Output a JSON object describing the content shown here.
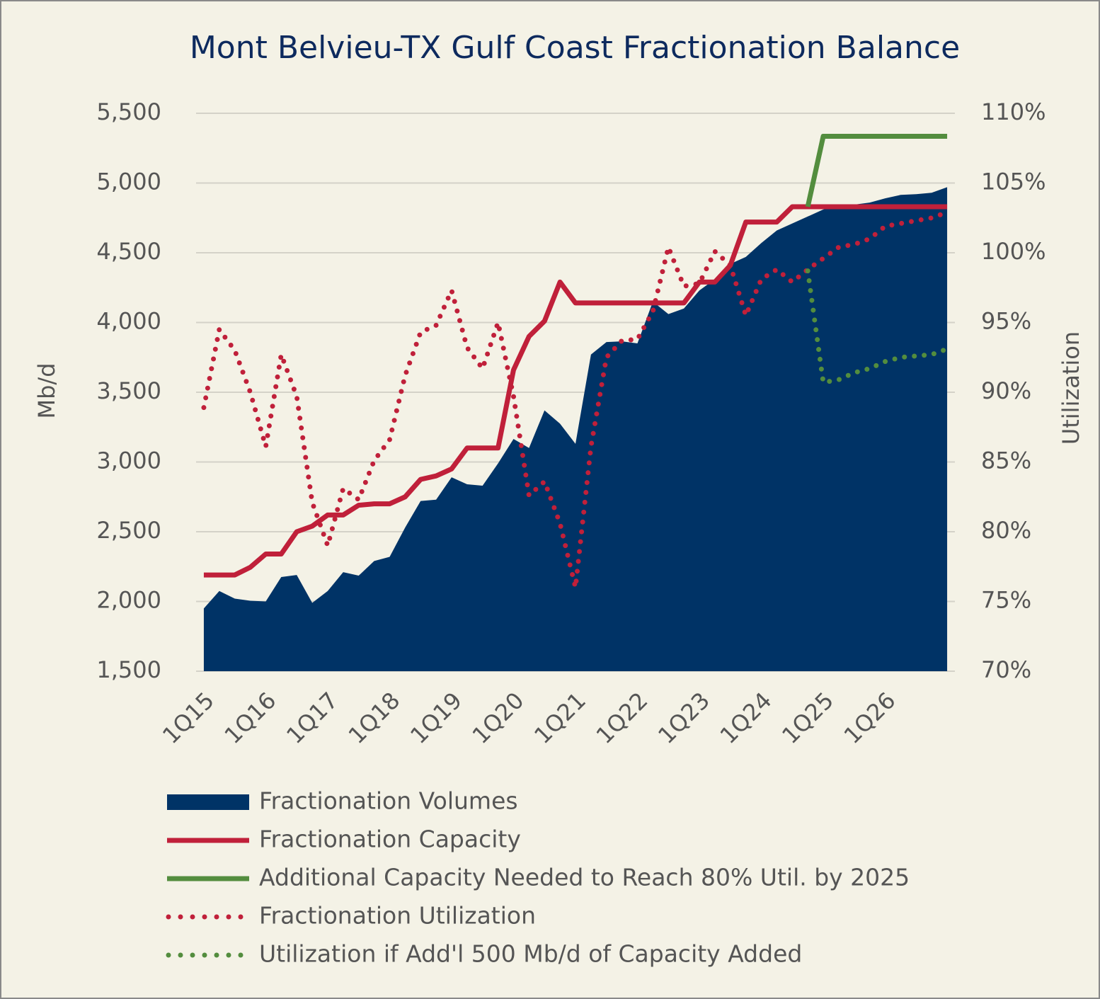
{
  "chart_data": {
    "type": "line",
    "title": "Mont Belvieu-TX Gulf Coast Fractionation Balance",
    "y_label": "Mb/d",
    "y2_label": "Utilization",
    "categories": [
      "1Q15",
      null,
      null,
      null,
      "1Q16",
      null,
      null,
      null,
      "1Q17",
      null,
      null,
      null,
      "1Q18",
      null,
      null,
      null,
      "1Q19",
      null,
      null,
      null,
      "1Q20",
      null,
      null,
      null,
      "1Q21",
      null,
      null,
      null,
      "1Q22",
      null,
      null,
      null,
      "1Q23",
      null,
      null,
      null,
      "1Q24",
      null,
      null,
      null,
      "1Q25",
      null,
      null,
      null,
      "1Q26",
      null,
      null,
      null,
      null
    ],
    "ylim": [
      1500,
      5500
    ],
    "yticks": [
      {
        "value": 1500,
        "label": "1,500"
      },
      {
        "value": 2000,
        "label": "2,000"
      },
      {
        "value": 2500,
        "label": "2,500"
      },
      {
        "value": 3000,
        "label": "3,000"
      },
      {
        "value": 3500,
        "label": "3,500"
      },
      {
        "value": 4000,
        "label": "4,000"
      },
      {
        "value": 4500,
        "label": "4,500"
      },
      {
        "value": 5000,
        "label": "5,000"
      },
      {
        "value": 5500,
        "label": "5,500"
      }
    ],
    "y2lim": [
      70,
      110
    ],
    "y2ticks": [
      {
        "value": 70,
        "label": "70%"
      },
      {
        "value": 75,
        "label": "75%"
      },
      {
        "value": 80,
        "label": "80%"
      },
      {
        "value": 85,
        "label": "85%"
      },
      {
        "value": 90,
        "label": "90%"
      },
      {
        "value": 95,
        "label": "95%"
      },
      {
        "value": 100,
        "label": "100%"
      },
      {
        "value": 105,
        "label": "105%"
      },
      {
        "value": 110,
        "label": "110%"
      }
    ],
    "grid": true,
    "series": [
      {
        "name": "Fractionation Volumes",
        "mark": "area",
        "color": "#003366",
        "values": [
          1950,
          2075,
          2020,
          2005,
          2000,
          2175,
          2190,
          1990,
          2075,
          2210,
          2185,
          2290,
          2320,
          2530,
          2720,
          2730,
          2890,
          2840,
          2830,
          2990,
          3165,
          3100,
          3370,
          3275,
          3130,
          3770,
          3860,
          3865,
          3850,
          4150,
          4060,
          4100,
          4230,
          4310,
          4420,
          4470,
          4570,
          4660,
          4710,
          4760,
          4810,
          4835,
          4845,
          4860,
          4890,
          4915,
          4920,
          4930,
          4970
        ]
      },
      {
        "name": "Fractionation Capacity",
        "mark": "line",
        "color": "#c0203a",
        "values": [
          2190,
          2190,
          2190,
          2245,
          2340,
          2340,
          2500,
          2540,
          2620,
          2620,
          2690,
          2700,
          2700,
          2750,
          2875,
          2900,
          2950,
          3100,
          3100,
          3100,
          3660,
          3900,
          4010,
          4290,
          4140,
          4140,
          4140,
          4140,
          4140,
          4140,
          4140,
          4140,
          4290,
          4290,
          4410,
          4720,
          4720,
          4720,
          4830,
          4830,
          4830,
          4830,
          4830,
          4830,
          4830,
          4830,
          4830,
          4830,
          4830
        ]
      },
      {
        "name": "Additional Capacity Needed to Reach 80% Util. by 2025",
        "mark": "line",
        "color": "#538d3e",
        "values": [
          null,
          null,
          null,
          null,
          null,
          null,
          null,
          null,
          null,
          null,
          null,
          null,
          null,
          null,
          null,
          null,
          null,
          null,
          null,
          null,
          null,
          null,
          null,
          null,
          null,
          null,
          null,
          null,
          null,
          null,
          null,
          null,
          null,
          null,
          null,
          null,
          null,
          null,
          null,
          4830,
          5335,
          5335,
          5335,
          5335,
          5335,
          5335,
          5335,
          5335,
          5335
        ]
      },
      {
        "name": "Fractionation Utilization",
        "mark": "dotted",
        "axis": "y2",
        "color": "#c0203a",
        "values": [
          88.9,
          94.5,
          93.0,
          90.0,
          86.1,
          92.7,
          89.7,
          82.1,
          79.0,
          83.1,
          82.3,
          85.1,
          86.6,
          91.2,
          94.3,
          94.8,
          97.3,
          93.2,
          91.7,
          95.0,
          89.7,
          82.6,
          83.6,
          80.6,
          76.0,
          86.1,
          92.5,
          93.7,
          93.8,
          95.8,
          100.4,
          97.6,
          97.8,
          100.1,
          99.1,
          95.5,
          98.1,
          98.8,
          97.9,
          98.8,
          99.6,
          100.4,
          100.6,
          101.0,
          101.9,
          102.1,
          102.3,
          102.5,
          102.9
        ]
      },
      {
        "name": "Utilization if Add'l 500 Mb/d of Capacity Added",
        "mark": "dotted",
        "axis": "y2",
        "color": "#538d3e",
        "values": [
          null,
          null,
          null,
          null,
          null,
          null,
          null,
          null,
          null,
          null,
          null,
          null,
          null,
          null,
          null,
          null,
          null,
          null,
          null,
          null,
          null,
          null,
          null,
          null,
          null,
          null,
          null,
          null,
          null,
          null,
          null,
          null,
          null,
          null,
          null,
          null,
          null,
          null,
          null,
          98.7,
          90.7,
          90.9,
          91.4,
          91.7,
          92.2,
          92.5,
          92.6,
          92.7,
          93.1
        ]
      }
    ]
  }
}
